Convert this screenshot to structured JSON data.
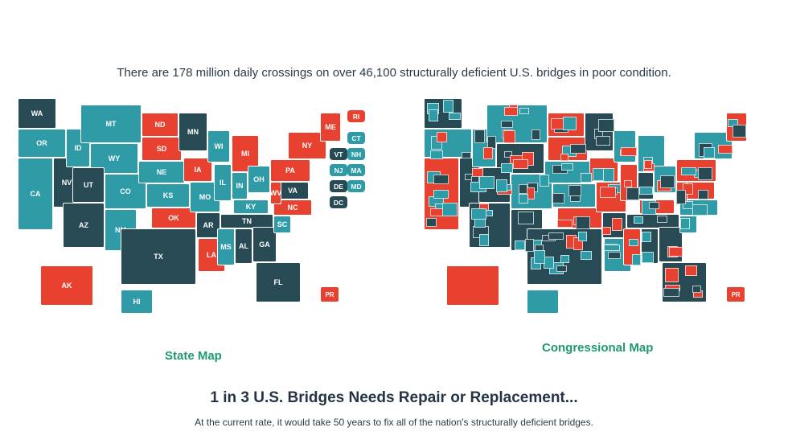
{
  "colors": {
    "dark": "#274a55",
    "teal": "#2e9ba7",
    "red": "#e8412f",
    "title_green": "#1e9a6e"
  },
  "headline": "There are 178 million daily crossings on over 46,100 structurally deficient U.S. bridges in poor condition.",
  "state_map": {
    "title": "State Map",
    "states": {
      "WA": "dark",
      "OR": "teal",
      "CA": "teal",
      "NV": "dark",
      "ID": "teal",
      "MT": "teal",
      "WY": "teal",
      "UT": "dark",
      "AZ": "dark",
      "CO": "teal",
      "NM": "teal",
      "ND": "red",
      "SD": "red",
      "NE": "teal",
      "KS": "teal",
      "OK": "red",
      "TX": "dark",
      "MN": "dark",
      "IA": "red",
      "MO": "teal",
      "AR": "dark",
      "LA": "red",
      "WI": "teal",
      "IL": "teal",
      "MI": "red",
      "IN": "teal",
      "OH": "teal",
      "KY": "teal",
      "TN": "dark",
      "MS": "teal",
      "AL": "dark",
      "GA": "dark",
      "FL": "dark",
      "SC": "teal",
      "NC": "red",
      "VA": "dark",
      "WV": "red",
      "PA": "red",
      "NY": "red",
      "ME": "red",
      "AK": "red",
      "HI": "teal",
      "PR": "red"
    },
    "small_states": [
      {
        "code": "RI",
        "status": "red"
      },
      {
        "code": "CT",
        "status": "teal"
      },
      {
        "code": "VT",
        "status": "dark"
      },
      {
        "code": "NH",
        "status": "teal"
      },
      {
        "code": "NJ",
        "status": "teal"
      },
      {
        "code": "MA",
        "status": "teal"
      },
      {
        "code": "DE",
        "status": "dark"
      },
      {
        "code": "MD",
        "status": "teal"
      },
      {
        "code": "DC",
        "status": "dark"
      }
    ]
  },
  "congressional_map": {
    "title": "Congressional Map",
    "pr_label": "PR",
    "states": {
      "WA": "dark",
      "OR": "teal",
      "CA": "red",
      "NV": "dark",
      "ID": "teal",
      "MT": "teal",
      "WY": "dark",
      "UT": "dark",
      "AZ": "dark",
      "CO": "teal",
      "NM": "dark",
      "ND": "red",
      "SD": "red",
      "NE": "teal",
      "KS": "teal",
      "OK": "red",
      "TX": "dark",
      "MN": "dark",
      "IA": "red",
      "MO": "red",
      "AR": "dark",
      "LA": "teal",
      "WI": "teal",
      "IL": "red",
      "MI": "teal",
      "IN": "dark",
      "OH": "teal",
      "KY": "red",
      "TN": "dark",
      "MS": "red",
      "AL": "dark",
      "GA": "dark",
      "FL": "dark",
      "SC": "teal",
      "NC": "teal",
      "VA": "red",
      "WV": "red",
      "PA": "red",
      "NY": "teal",
      "ME": "red",
      "AK": "red",
      "HI": "teal",
      "PR": "red"
    }
  },
  "section_title": "1 in 3 U.S. Bridges Needs Repair or Replacement...",
  "section_subtitle": "At the current rate, it would take 50 years to fix all of the nation's structurally deficient bridges."
}
